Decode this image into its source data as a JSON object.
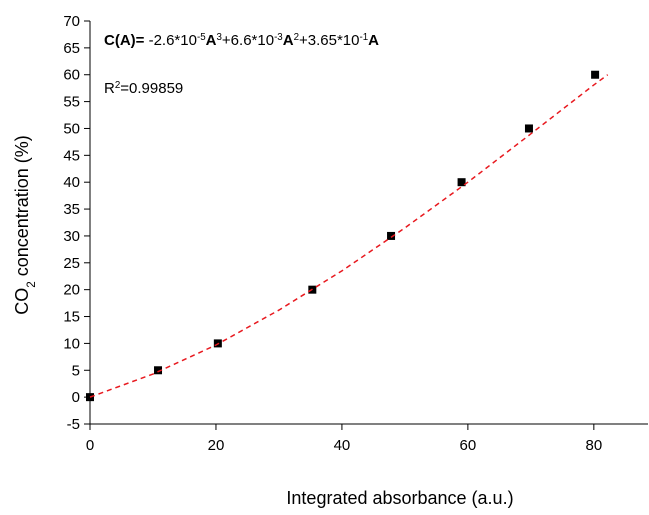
{
  "chart_data": {
    "type": "scatter",
    "xlabel": "Integrated absorbance (a.u.)",
    "ylabel": [
      {
        "text": "CO",
        "style": "normal"
      },
      {
        "text": "2",
        "style": "sub"
      },
      {
        "text": " concentration (%)",
        "style": "normal"
      }
    ],
    "equation": [
      {
        "text": "C(A)=",
        "style": "bold"
      },
      {
        "text": " -2.6*10",
        "style": "normal"
      },
      {
        "text": "-5",
        "style": "sup"
      },
      {
        "text": "A",
        "style": "bold"
      },
      {
        "text": "3",
        "style": "sup"
      },
      {
        "text": "+6.6*10",
        "style": "normal"
      },
      {
        "text": "-3",
        "style": "sup"
      },
      {
        "text": "A",
        "style": "bold"
      },
      {
        "text": "2",
        "style": "sup"
      },
      {
        "text": "+3.65*10",
        "style": "normal"
      },
      {
        "text": "-1",
        "style": "sup"
      },
      {
        "text": "A",
        "style": "bold"
      }
    ],
    "r_squared": [
      {
        "text": "R",
        "style": "normal"
      },
      {
        "text": "2",
        "style": "sup"
      },
      {
        "text": "=0.99859",
        "style": "normal"
      }
    ],
    "points": {
      "color": "#000000",
      "x": [
        0,
        10.8,
        20.3,
        35.3,
        47.8,
        59,
        69.7,
        80.2
      ],
      "values": [
        0,
        5,
        10,
        20,
        30,
        40,
        50,
        60
      ]
    },
    "fit": {
      "color": "#e8191f",
      "dashed": true,
      "x": [
        0,
        10,
        20,
        30,
        40,
        50,
        60,
        70,
        80,
        82.2
      ],
      "values": [
        0,
        4.3,
        9.7,
        16.2,
        23.5,
        31.5,
        40,
        49,
        58.1,
        60
      ]
    },
    "xlim": [
      0,
      88.6
    ],
    "ylim": [
      -5,
      70
    ],
    "xticks": [
      0,
      20,
      40,
      60,
      80
    ],
    "yticks": [
      -5,
      0,
      5,
      10,
      15,
      20,
      25,
      30,
      35,
      40,
      45,
      50,
      55,
      60,
      65,
      70
    ]
  }
}
